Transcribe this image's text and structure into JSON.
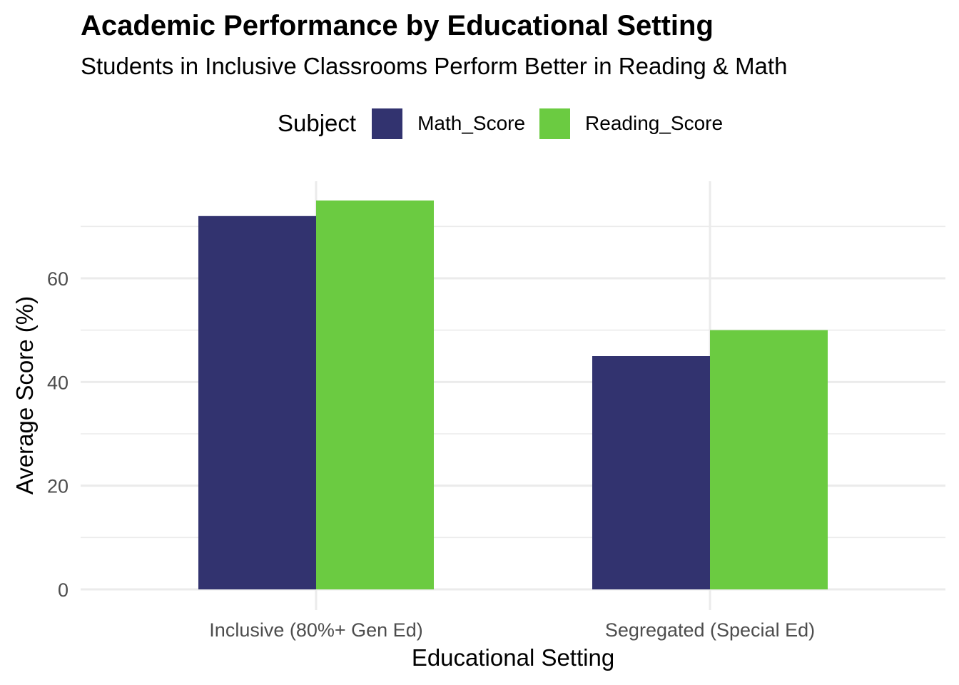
{
  "title": "Academic Performance by Educational Setting",
  "subtitle": "Students in Inclusive Classrooms Perform Better in Reading & Math",
  "legend": {
    "title": "Subject",
    "placement": "top"
  },
  "colors": {
    "Math_Score": "#32336f",
    "Reading_Score": "#6bcb41",
    "grid": "#ebebeb",
    "axis_text": "#4d4d4d"
  },
  "chart_data": {
    "type": "bar",
    "title": "Academic Performance by Educational Setting",
    "subtitle": "Students in Inclusive Classrooms Perform Better in Reading & Math",
    "xlabel": "Educational Setting",
    "ylabel": "Average Score (%)",
    "categories": [
      "Inclusive (80%+ Gen Ed)",
      "Segregated (Special Ed)"
    ],
    "series": [
      {
        "name": "Math_Score",
        "values": [
          72,
          45
        ]
      },
      {
        "name": "Reading_Score",
        "values": [
          75,
          50
        ]
      }
    ],
    "ylim": [
      0,
      75
    ],
    "yticks": [
      0,
      20,
      40,
      60
    ],
    "grid": true,
    "legend_position": "top"
  }
}
